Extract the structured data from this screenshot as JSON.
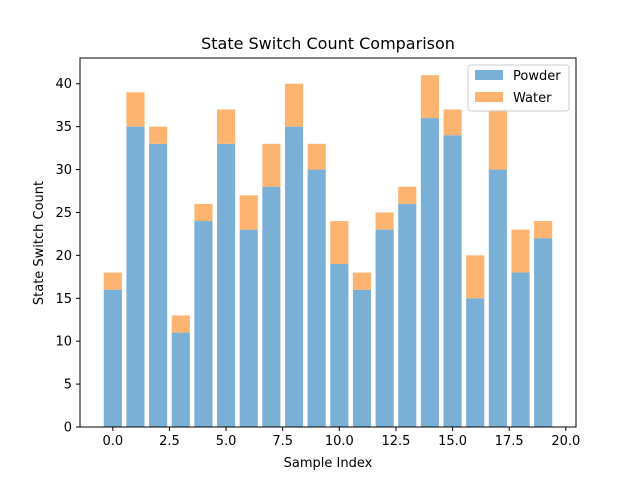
{
  "chart_data": {
    "type": "bar",
    "stacked": true,
    "title": "State Switch Count Comparison",
    "xlabel": "Sample Index",
    "ylabel": "State Switch Count",
    "x": [
      0,
      1,
      2,
      3,
      4,
      5,
      6,
      7,
      8,
      9,
      10,
      11,
      12,
      13,
      14,
      15,
      16,
      17,
      18,
      19
    ],
    "series": [
      {
        "name": "Powder",
        "color": "#7aafd6",
        "values": [
          16,
          35,
          33,
          11,
          24,
          33,
          23,
          28,
          35,
          30,
          19,
          16,
          23,
          26,
          36,
          34,
          15,
          30,
          18,
          22
        ]
      },
      {
        "name": "Water",
        "color": "#fdb470",
        "values": [
          2,
          4,
          2,
          2,
          2,
          4,
          4,
          5,
          5,
          3,
          5,
          2,
          2,
          2,
          5,
          3,
          5,
          7,
          5,
          2
        ]
      }
    ],
    "xlim": [
      -1.45,
      20.45
    ],
    "ylim": [
      0,
      43
    ],
    "xticks": [
      "0.0",
      "2.5",
      "5.0",
      "7.5",
      "10.0",
      "12.5",
      "15.0",
      "17.5",
      "20.0"
    ],
    "xtick_values": [
      0,
      2.5,
      5,
      7.5,
      10,
      12.5,
      15,
      17.5,
      20
    ],
    "yticks": [
      "0",
      "5",
      "10",
      "15",
      "20",
      "25",
      "30",
      "35",
      "40"
    ],
    "ytick_values": [
      0,
      5,
      10,
      15,
      20,
      25,
      30,
      35,
      40
    ],
    "grid": false,
    "legend_position": "top-right"
  }
}
